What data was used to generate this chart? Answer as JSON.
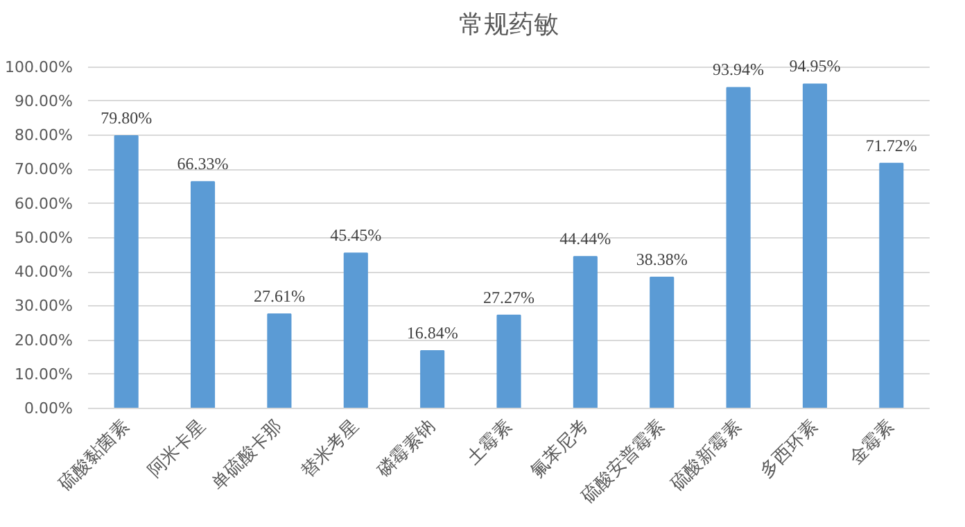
{
  "chart_data": {
    "type": "bar",
    "title": "常规药敏",
    "categories": [
      "硫酸黏菌素",
      "阿米卡星",
      "单硫酸卡那",
      "替米考星",
      "磷霉素钠",
      "土霉素",
      "氟苯尼考",
      "硫酸安普霉素",
      "硫酸新霉素",
      "多西环素",
      "金霉素"
    ],
    "values": [
      79.8,
      66.33,
      27.61,
      45.45,
      16.84,
      27.27,
      44.44,
      38.38,
      93.94,
      94.95,
      71.72
    ],
    "value_labels": [
      "79.80%",
      "66.33%",
      "27.61%",
      "45.45%",
      "16.84%",
      "27.27%",
      "44.44%",
      "38.38%",
      "93.94%",
      "94.95%",
      "71.72%"
    ],
    "color": "#5b9bd5",
    "ylim": [
      0,
      100
    ],
    "yticks": [
      {
        "value": 0,
        "label": "0.00%"
      },
      {
        "value": 10,
        "label": "10.00%"
      },
      {
        "value": 20,
        "label": "20.00%"
      },
      {
        "value": 30,
        "label": "30.00%"
      },
      {
        "value": 40,
        "label": "40.00%"
      },
      {
        "value": 50,
        "label": "50.00%"
      },
      {
        "value": 60,
        "label": "60.00%"
      },
      {
        "value": 70,
        "label": "70.00%"
      },
      {
        "value": 80,
        "label": "80.00%"
      },
      {
        "value": 90,
        "label": "90.00%"
      },
      {
        "value": 100,
        "label": "100.00%"
      }
    ],
    "grid": "y"
  }
}
